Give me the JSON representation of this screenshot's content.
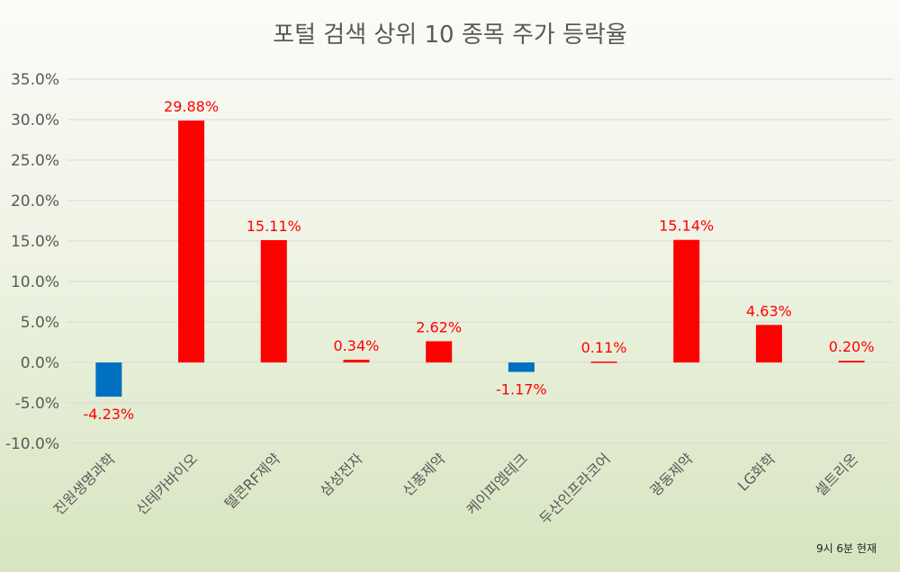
{
  "chart_data": {
    "type": "bar",
    "title": "포털 검색 상위 10 종목 주가 등락율",
    "categories": [
      "진원생명과학",
      "신테카바이오",
      "텔콘RF제약",
      "삼성전자",
      "신풍제약",
      "케이피엠테크",
      "두산인프라코어",
      "광동제약",
      "LG화학",
      "셀트리온"
    ],
    "values": [
      -4.23,
      29.88,
      15.11,
      0.34,
      2.62,
      -1.17,
      0.11,
      15.14,
      4.63,
      0.2
    ],
    "data_labels": [
      "-4.23%",
      "29.88%",
      "15.11%",
      "0.34%",
      "2.62%",
      "-1.17%",
      "0.11%",
      "15.14%",
      "4.63%",
      "0.20%"
    ],
    "yticks": [
      "35.0%",
      "30.0%",
      "25.0%",
      "20.0%",
      "15.0%",
      "10.0%",
      "5.0%",
      "0.0%",
      "-5.0%",
      "-10.0%"
    ],
    "ylim": [
      -10,
      35
    ],
    "grid": true,
    "colors": {
      "positive": "#ff0000",
      "negative": "#0070c0",
      "label": "#ff0000",
      "grid": "#d9d9d9"
    }
  },
  "footnote": "9시 6분 현재"
}
